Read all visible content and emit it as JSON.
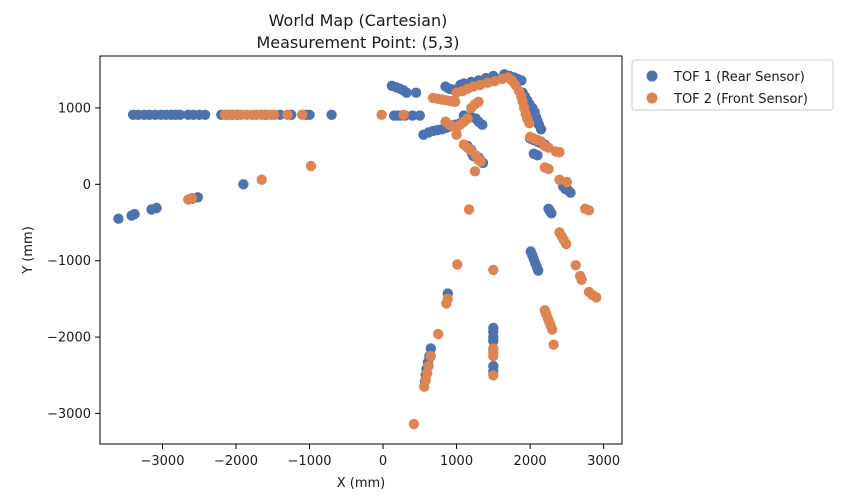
{
  "chart_data": {
    "type": "scatter",
    "title": "World Map (Cartesian)",
    "subtitle": "Measurement Point: (5,3)",
    "xlabel": "X (mm)",
    "ylabel": "Y (mm)",
    "xlim": [
      -3850,
      3250
    ],
    "ylim": [
      -3400,
      1680
    ],
    "xticks": [
      -3000,
      -2000,
      -1000,
      0,
      1000,
      2000,
      3000
    ],
    "yticks": [
      -3000,
      -2000,
      -1000,
      0,
      1000
    ],
    "xtick_labels": [
      "−3000",
      "−2000",
      "−1000",
      "0",
      "1000",
      "2000",
      "3000"
    ],
    "ytick_labels": [
      "−3000",
      "−2000",
      "−1000",
      "0",
      "1000"
    ],
    "grid": false,
    "legend_position": "outside-top-right",
    "series": [
      {
        "name": "TOF 1 (Rear Sensor)",
        "color": "#4c72b0",
        "points": [
          [
            -3600,
            -450
          ],
          [
            -3420,
            -410
          ],
          [
            -3380,
            -390
          ],
          [
            -3150,
            -330
          ],
          [
            -3080,
            -310
          ],
          [
            -2600,
            -190
          ],
          [
            -2520,
            -170
          ],
          [
            -1900,
            0
          ],
          [
            -3400,
            910
          ],
          [
            -3330,
            910
          ],
          [
            -3250,
            910
          ],
          [
            -3180,
            910
          ],
          [
            -3100,
            910
          ],
          [
            -3020,
            910
          ],
          [
            -2950,
            910
          ],
          [
            -2880,
            910
          ],
          [
            -2820,
            910
          ],
          [
            -2760,
            910
          ],
          [
            -2650,
            910
          ],
          [
            -2580,
            910
          ],
          [
            -2500,
            910
          ],
          [
            -2420,
            910
          ],
          [
            -2200,
            910
          ],
          [
            -2130,
            910
          ],
          [
            -2050,
            910
          ],
          [
            -1980,
            910
          ],
          [
            -1600,
            910
          ],
          [
            -1400,
            910
          ],
          [
            -1250,
            910
          ],
          [
            -1050,
            910
          ],
          [
            -1000,
            910
          ],
          [
            -700,
            910
          ],
          [
            120,
            1290
          ],
          [
            180,
            1270
          ],
          [
            230,
            1250
          ],
          [
            280,
            1230
          ],
          [
            320,
            1200
          ],
          [
            450,
            1200
          ],
          [
            150,
            900
          ],
          [
            200,
            900
          ],
          [
            250,
            900
          ],
          [
            300,
            900
          ],
          [
            400,
            900
          ],
          [
            500,
            900
          ],
          [
            550,
            650
          ],
          [
            620,
            680
          ],
          [
            680,
            700
          ],
          [
            740,
            710
          ],
          [
            800,
            720
          ],
          [
            860,
            740
          ],
          [
            920,
            760
          ],
          [
            980,
            780
          ],
          [
            1050,
            800
          ],
          [
            850,
            1280
          ],
          [
            900,
            1250
          ],
          [
            950,
            1240
          ],
          [
            1000,
            1220
          ],
          [
            1050,
            1300
          ],
          [
            1100,
            1320
          ],
          [
            1150,
            1280
          ],
          [
            1200,
            1340
          ],
          [
            1250,
            1300
          ],
          [
            1300,
            1360
          ],
          [
            1350,
            1330
          ],
          [
            1400,
            1390
          ],
          [
            1450,
            1350
          ],
          [
            1500,
            1420
          ],
          [
            1550,
            1380
          ],
          [
            1650,
            1440
          ],
          [
            1720,
            1420
          ],
          [
            1780,
            1400
          ],
          [
            1830,
            1380
          ],
          [
            1880,
            1360
          ],
          [
            1100,
            900
          ],
          [
            1200,
            880
          ],
          [
            1260,
            860
          ],
          [
            1300,
            820
          ],
          [
            1350,
            780
          ],
          [
            1150,
            500
          ],
          [
            1200,
            450
          ],
          [
            1210,
            400
          ],
          [
            1230,
            370
          ],
          [
            1300,
            350
          ],
          [
            1330,
            310
          ],
          [
            1360,
            280
          ],
          [
            1900,
            1200
          ],
          [
            1930,
            1150
          ],
          [
            1960,
            1100
          ],
          [
            1990,
            1050
          ],
          [
            2030,
            1000
          ],
          [
            2060,
            950
          ],
          [
            2080,
            880
          ],
          [
            2100,
            830
          ],
          [
            2120,
            780
          ],
          [
            2150,
            720
          ],
          [
            2000,
            600
          ],
          [
            2050,
            580
          ],
          [
            2100,
            560
          ],
          [
            2150,
            540
          ],
          [
            2200,
            520
          ],
          [
            2050,
            400
          ],
          [
            2100,
            380
          ],
          [
            2450,
            -30
          ],
          [
            2480,
            -60
          ],
          [
            2520,
            -80
          ],
          [
            2550,
            -110
          ],
          [
            2250,
            -320
          ],
          [
            2270,
            -350
          ],
          [
            2290,
            -380
          ],
          [
            2010,
            -880
          ],
          [
            2030,
            -930
          ],
          [
            2050,
            -980
          ],
          [
            2070,
            -1030
          ],
          [
            2090,
            -1080
          ],
          [
            2110,
            -1130
          ],
          [
            880,
            -1430
          ],
          [
            650,
            -2150
          ],
          [
            630,
            -2250
          ],
          [
            610,
            -2330
          ],
          [
            590,
            -2420
          ],
          [
            580,
            -2500
          ],
          [
            570,
            -2580
          ],
          [
            1500,
            -1880
          ],
          [
            1500,
            -1930
          ],
          [
            1500,
            -2000
          ],
          [
            1500,
            -2050
          ],
          [
            1500,
            -2380
          ],
          [
            1500,
            -2450
          ]
        ]
      },
      {
        "name": "TOF 2 (Front Sensor)",
        "color": "#dd8452",
        "points": [
          [
            -2650,
            -200
          ],
          [
            -2600,
            -180
          ],
          [
            -1650,
            60
          ],
          [
            -980,
            240
          ],
          [
            -2150,
            910
          ],
          [
            -2080,
            910
          ],
          [
            -2000,
            910
          ],
          [
            -1930,
            910
          ],
          [
            -1850,
            910
          ],
          [
            -1780,
            910
          ],
          [
            -1720,
            910
          ],
          [
            -1650,
            910
          ],
          [
            -1580,
            910
          ],
          [
            -1520,
            910
          ],
          [
            -1480,
            910
          ],
          [
            -1300,
            910
          ],
          [
            -1100,
            910
          ],
          [
            -20,
            910
          ],
          [
            280,
            910
          ],
          [
            680,
            1130
          ],
          [
            740,
            1120
          ],
          [
            800,
            1110
          ],
          [
            860,
            1100
          ],
          [
            920,
            1090
          ],
          [
            980,
            1080
          ],
          [
            1000,
            1200
          ],
          [
            1080,
            1220
          ],
          [
            1150,
            1250
          ],
          [
            1230,
            1280
          ],
          [
            1320,
            1300
          ],
          [
            1420,
            1330
          ],
          [
            1520,
            1350
          ],
          [
            1620,
            1380
          ],
          [
            1700,
            1400
          ],
          [
            1750,
            1360
          ],
          [
            1800,
            1300
          ],
          [
            1850,
            1220
          ],
          [
            1880,
            1150
          ],
          [
            1900,
            1080
          ],
          [
            1920,
            1000
          ],
          [
            1940,
            920
          ],
          [
            1960,
            860
          ],
          [
            1990,
            800
          ],
          [
            850,
            820
          ],
          [
            900,
            780
          ],
          [
            950,
            760
          ],
          [
            1000,
            740
          ],
          [
            1050,
            780
          ],
          [
            1100,
            820
          ],
          [
            1150,
            860
          ],
          [
            1200,
            1000
          ],
          [
            1250,
            1050
          ],
          [
            1300,
            1080
          ],
          [
            1000,
            650
          ],
          [
            1100,
            520
          ],
          [
            1150,
            480
          ],
          [
            1200,
            440
          ],
          [
            1260,
            380
          ],
          [
            1300,
            320
          ],
          [
            1330,
            300
          ],
          [
            1250,
            170
          ],
          [
            1170,
            -330
          ],
          [
            2000,
            620
          ],
          [
            2050,
            600
          ],
          [
            2100,
            580
          ],
          [
            2150,
            560
          ],
          [
            2200,
            500
          ],
          [
            2250,
            480
          ],
          [
            2350,
            430
          ],
          [
            2400,
            420
          ],
          [
            2200,
            220
          ],
          [
            2250,
            200
          ],
          [
            2400,
            60
          ],
          [
            2500,
            30
          ],
          [
            2750,
            -320
          ],
          [
            2800,
            -340
          ],
          [
            2400,
            -630
          ],
          [
            2430,
            -680
          ],
          [
            2460,
            -730
          ],
          [
            2490,
            -780
          ],
          [
            2620,
            -1060
          ],
          [
            2680,
            -1200
          ],
          [
            2700,
            -1250
          ],
          [
            2800,
            -1410
          ],
          [
            2850,
            -1450
          ],
          [
            2900,
            -1480
          ],
          [
            2200,
            -1650
          ],
          [
            2220,
            -1700
          ],
          [
            2240,
            -1750
          ],
          [
            2260,
            -1800
          ],
          [
            2280,
            -1850
          ],
          [
            2300,
            -1900
          ],
          [
            2320,
            -2100
          ],
          [
            1500,
            -2150
          ],
          [
            1500,
            -2200
          ],
          [
            1500,
            -2250
          ],
          [
            1500,
            -2500
          ],
          [
            1010,
            -1050
          ],
          [
            1500,
            -1120
          ],
          [
            880,
            -1500
          ],
          [
            860,
            -1560
          ],
          [
            750,
            -1960
          ],
          [
            650,
            -2250
          ],
          [
            620,
            -2380
          ],
          [
            600,
            -2470
          ],
          [
            580,
            -2560
          ],
          [
            560,
            -2650
          ],
          [
            420,
            -3140
          ]
        ]
      }
    ]
  }
}
